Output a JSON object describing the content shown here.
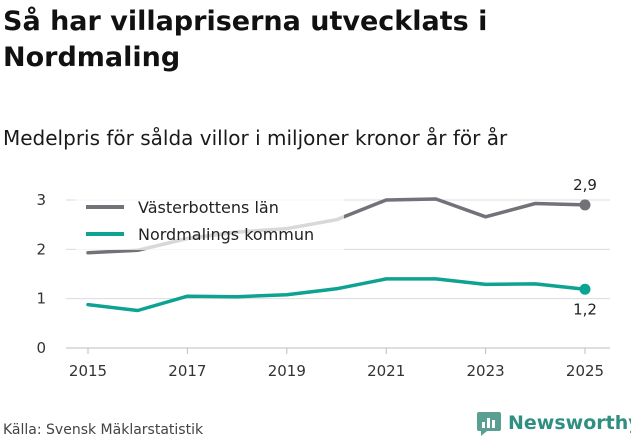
{
  "header": {
    "title": "Så har villapriserna utvecklats i Nordmaling",
    "subtitle": "Medelpris för sålda villor i miljoner kronor år för år"
  },
  "footer": {
    "source": "Källa: Svensk Mäklarstatistik",
    "brand": "Newsworthy"
  },
  "colors": {
    "series_gray": "#737278",
    "series_teal": "#0ea293",
    "grid": "#dcdcdc",
    "brand": "#2f8f80"
  },
  "chart_data": {
    "type": "line",
    "title": "Så har villapriserna utvecklats i Nordmaling",
    "subtitle": "Medelpris för sålda villor i miljoner kronor år för år",
    "xlabel": "",
    "ylabel": "",
    "x": [
      2015,
      2016,
      2017,
      2018,
      2019,
      2020,
      2021,
      2022,
      2023,
      2024,
      2025
    ],
    "xticks": [
      "2015",
      "2017",
      "2019",
      "2021",
      "2023",
      "2025"
    ],
    "yticks": [
      "0",
      "1",
      "2",
      "3"
    ],
    "ylim": [
      0,
      3.2
    ],
    "grid": true,
    "legend": "top-left",
    "series": [
      {
        "name": "Västerbottens län",
        "color": "#737278",
        "values": [
          1.93,
          1.98,
          2.22,
          2.35,
          2.42,
          2.6,
          3.0,
          3.02,
          2.66,
          2.93,
          2.9
        ],
        "end_label": "2,9"
      },
      {
        "name": "Nordmalings kommun",
        "color": "#0ea293",
        "values": [
          0.88,
          0.76,
          1.05,
          1.04,
          1.08,
          1.2,
          1.4,
          1.4,
          1.29,
          1.3,
          1.19
        ],
        "end_label": "1,2"
      }
    ]
  }
}
